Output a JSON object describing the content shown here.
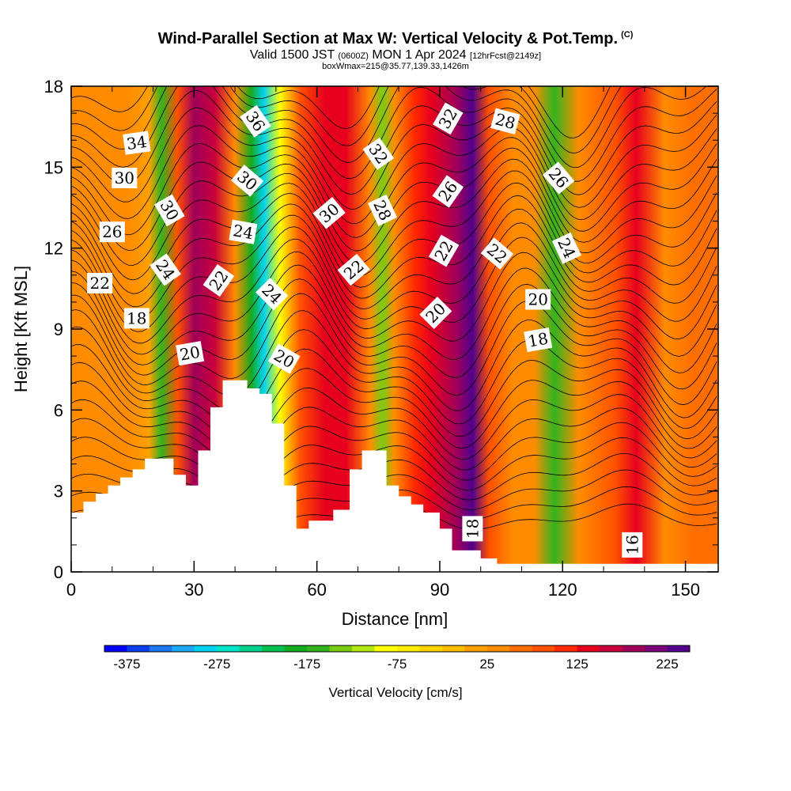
{
  "header": {
    "title": "Wind-Parallel Section at Max W: Vertical Velocity & Pot.Temp.",
    "copyright": "(C)",
    "valid_prefix": "Valid 1500 JST",
    "valid_utc": "(0600Z)",
    "valid_date": "MON 1 Apr 2024",
    "forecast_info": "[12hrFcst@2149z]",
    "box_info": "boxWmax=215@35.77,139.33,1426m"
  },
  "chart_data": {
    "type": "heatmap",
    "title": "Wind-Parallel Section at Max W: Vertical Velocity & Pot.Temp.",
    "xlabel": "Distance [nm]",
    "ylabel": "Height [Kft MSL]",
    "xlim": [
      0,
      158
    ],
    "ylim": [
      0,
      18
    ],
    "xticks": [
      0,
      30,
      60,
      90,
      120,
      150
    ],
    "yticks": [
      0,
      3,
      6,
      9,
      12,
      15,
      18
    ],
    "colorbar": {
      "label": "Vertical Velocity [cm/s]",
      "tick_labels": [
        -375,
        -275,
        -175,
        -75,
        25,
        125,
        225
      ],
      "colors": [
        "#0000ff",
        "#0a3cf0",
        "#1e78f0",
        "#1ea8f5",
        "#00d2f0",
        "#00e6c8",
        "#00d28c",
        "#00c050",
        "#14aa1e",
        "#32b41e",
        "#78cd14",
        "#b4e614",
        "#ffff00",
        "#ffeb00",
        "#ffd200",
        "#ffbe00",
        "#ffa000",
        "#ff8c00",
        "#ff6e00",
        "#ff5000",
        "#ff2800",
        "#e6001e",
        "#c8003c",
        "#a0005a",
        "#780078",
        "#50008c"
      ]
    },
    "velocity_columns": [
      {
        "x": 3,
        "value": 25
      },
      {
        "x": 14,
        "value": 25
      },
      {
        "x": 19,
        "value": 10
      },
      {
        "x": 22,
        "value": -175
      },
      {
        "x": 26,
        "value": 75
      },
      {
        "x": 30,
        "value": 175
      },
      {
        "x": 35,
        "value": 150
      },
      {
        "x": 40,
        "value": 25
      },
      {
        "x": 44,
        "value": -200
      },
      {
        "x": 47,
        "value": -300
      },
      {
        "x": 51,
        "value": -100
      },
      {
        "x": 56,
        "value": 75
      },
      {
        "x": 62,
        "value": 125
      },
      {
        "x": 67,
        "value": 140
      },
      {
        "x": 73,
        "value": 25
      },
      {
        "x": 76,
        "value": -150
      },
      {
        "x": 79,
        "value": 25
      },
      {
        "x": 84,
        "value": 100
      },
      {
        "x": 88,
        "value": 125
      },
      {
        "x": 94,
        "value": 175
      },
      {
        "x": 98,
        "value": 260
      },
      {
        "x": 102,
        "value": 75
      },
      {
        "x": 108,
        "value": 25
      },
      {
        "x": 113,
        "value": 25
      },
      {
        "x": 118,
        "value": -175
      },
      {
        "x": 124,
        "value": 25
      },
      {
        "x": 133,
        "value": 75
      },
      {
        "x": 138,
        "value": 140
      },
      {
        "x": 145,
        "value": 25
      },
      {
        "x": 152,
        "value": 50
      }
    ],
    "potential_temperature_labels": [
      {
        "value": "34",
        "x": 16,
        "y": 15.9,
        "angle": -8
      },
      {
        "value": "30",
        "x": 13,
        "y": 14.6,
        "angle": 0
      },
      {
        "value": "26",
        "x": 10,
        "y": 12.6,
        "angle": 0
      },
      {
        "value": "22",
        "x": 7,
        "y": 10.7,
        "angle": 0
      },
      {
        "value": "18",
        "x": 16,
        "y": 9.4,
        "angle": 0
      },
      {
        "value": "30",
        "x": 24,
        "y": 13.4,
        "angle": 60
      },
      {
        "value": "24",
        "x": 23,
        "y": 11.2,
        "angle": 55
      },
      {
        "value": "20",
        "x": 29,
        "y": 8.1,
        "angle": -10
      },
      {
        "value": "22",
        "x": 36,
        "y": 10.8,
        "angle": -55
      },
      {
        "value": "24",
        "x": 42,
        "y": 12.6,
        "angle": 10
      },
      {
        "value": "30",
        "x": 43,
        "y": 14.5,
        "angle": 40
      },
      {
        "value": "36",
        "x": 45,
        "y": 16.7,
        "angle": 55
      },
      {
        "value": "24",
        "x": 49,
        "y": 10.3,
        "angle": 45
      },
      {
        "value": "20",
        "x": 52,
        "y": 7.9,
        "angle": 30
      },
      {
        "value": "30",
        "x": 63,
        "y": 13.3,
        "angle": -40
      },
      {
        "value": "22",
        "x": 69,
        "y": 11.2,
        "angle": -40
      },
      {
        "value": "32",
        "x": 75,
        "y": 15.5,
        "angle": 55
      },
      {
        "value": "28",
        "x": 76,
        "y": 13.4,
        "angle": 65
      },
      {
        "value": "32",
        "x": 92,
        "y": 16.8,
        "angle": -60
      },
      {
        "value": "26",
        "x": 92,
        "y": 14.1,
        "angle": -55
      },
      {
        "value": "22",
        "x": 91,
        "y": 11.9,
        "angle": -60
      },
      {
        "value": "20",
        "x": 89,
        "y": 9.6,
        "angle": -45
      },
      {
        "value": "28",
        "x": 106,
        "y": 16.7,
        "angle": 15
      },
      {
        "value": "22",
        "x": 104,
        "y": 11.8,
        "angle": 40
      },
      {
        "value": "20",
        "x": 114,
        "y": 10.1,
        "angle": 0
      },
      {
        "value": "18",
        "x": 114,
        "y": 8.6,
        "angle": -10
      },
      {
        "value": "26",
        "x": 119,
        "y": 14.6,
        "angle": 50
      },
      {
        "value": "24",
        "x": 121,
        "y": 12.0,
        "angle": 65
      },
      {
        "value": "18",
        "x": 98,
        "y": 1.6,
        "angle": -90
      },
      {
        "value": "16",
        "x": 137,
        "y": 1.0,
        "angle": -90
      }
    ],
    "terrain": [
      [
        0,
        2.2
      ],
      [
        3,
        2.2
      ],
      [
        3,
        2.6
      ],
      [
        6,
        2.6
      ],
      [
        6,
        2.9
      ],
      [
        9,
        2.9
      ],
      [
        9,
        3.2
      ],
      [
        12,
        3.2
      ],
      [
        12,
        3.5
      ],
      [
        15,
        3.5
      ],
      [
        15,
        3.8
      ],
      [
        18,
        3.8
      ],
      [
        18,
        4.2
      ],
      [
        25,
        4.2
      ],
      [
        25,
        3.6
      ],
      [
        28,
        3.6
      ],
      [
        28,
        3.2
      ],
      [
        31,
        3.2
      ],
      [
        31,
        4.5
      ],
      [
        34,
        4.5
      ],
      [
        34,
        6.1
      ],
      [
        37,
        6.1
      ],
      [
        37,
        7.1
      ],
      [
        43,
        7.1
      ],
      [
        43,
        6.8
      ],
      [
        46,
        6.8
      ],
      [
        46,
        6.6
      ],
      [
        49,
        6.6
      ],
      [
        49,
        5.5
      ],
      [
        52,
        5.5
      ],
      [
        52,
        3.2
      ],
      [
        55,
        3.2
      ],
      [
        55,
        1.6
      ],
      [
        58,
        1.6
      ],
      [
        58,
        1.9
      ],
      [
        64,
        1.9
      ],
      [
        64,
        2.3
      ],
      [
        68,
        2.3
      ],
      [
        68,
        3.8
      ],
      [
        71,
        3.8
      ],
      [
        71,
        4.5
      ],
      [
        77,
        4.5
      ],
      [
        77,
        3.2
      ],
      [
        80,
        3.2
      ],
      [
        80,
        2.8
      ],
      [
        83,
        2.8
      ],
      [
        83,
        2.5
      ],
      [
        86,
        2.5
      ],
      [
        86,
        2.2
      ],
      [
        90,
        2.2
      ],
      [
        90,
        1.6
      ],
      [
        93,
        1.6
      ],
      [
        93,
        0.8
      ],
      [
        100,
        0.8
      ],
      [
        100,
        0.5
      ],
      [
        104,
        0.5
      ],
      [
        104,
        0.3
      ],
      [
        158,
        0.3
      ],
      [
        158,
        0
      ]
    ]
  }
}
